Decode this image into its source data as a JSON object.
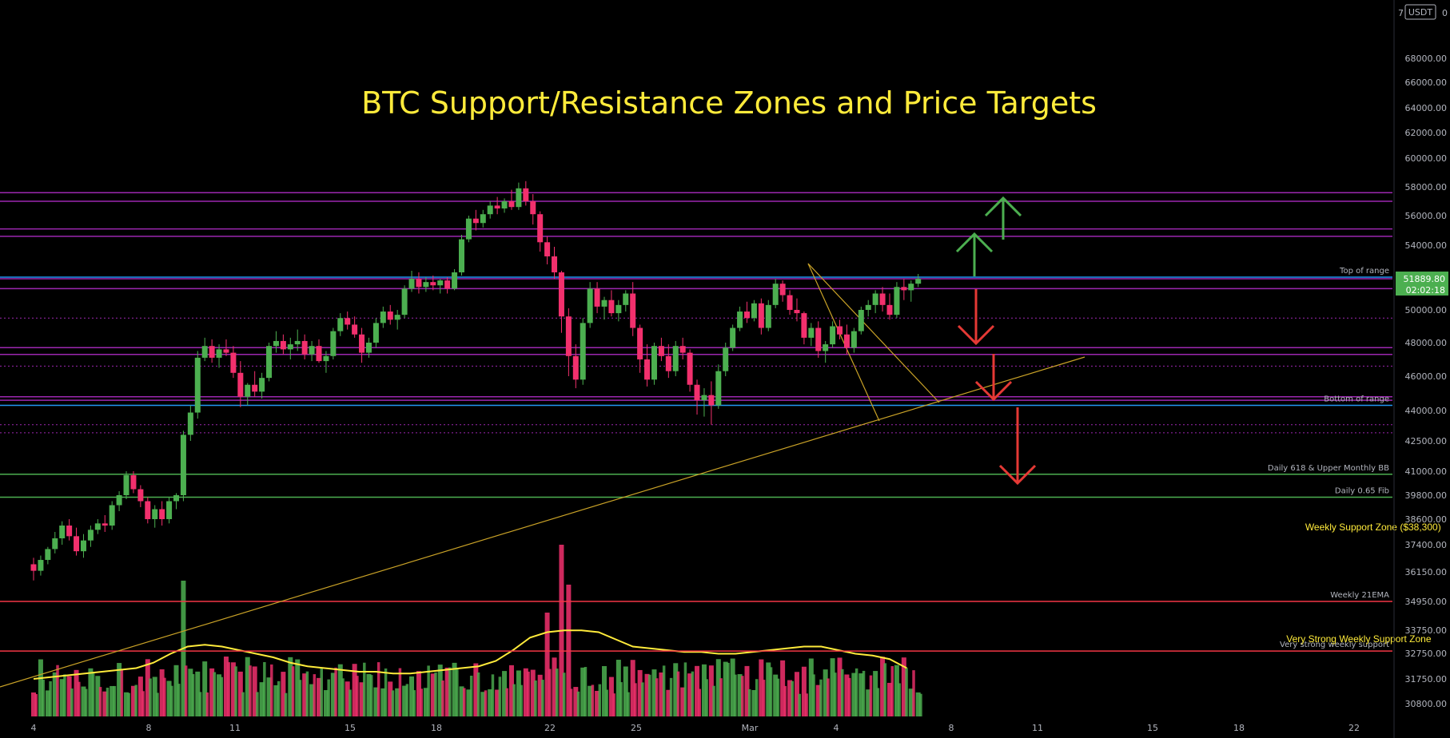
{
  "chart_data": {
    "type": "candlestick",
    "title": "BTC Support/Resistance Zones and Price Targets",
    "currency_badge": "USDT",
    "currency_number": "7",
    "y_axis": {
      "ticks": [
        68000,
        66000,
        64000,
        62000,
        60000,
        58000,
        56000,
        54000,
        52000,
        50000,
        48000,
        46000,
        44000,
        42500,
        41000,
        39800,
        38600,
        37400,
        36150,
        34950,
        33750,
        32750,
        31750,
        30800
      ],
      "tick_labels": [
        "68000.00",
        "66000.00",
        "64000.00",
        "62000.00",
        "60000.00",
        "58000.00",
        "56000.00",
        "54000.00",
        "52000.00",
        "50000.00",
        "48000.00",
        "46000.00",
        "44000.00",
        "42500.00",
        "41000.00",
        "39800.00",
        "38600.00",
        "37400.00",
        "36150.00",
        "34950.00",
        "33750.00",
        "32750.00",
        "31750.00",
        "30800.00"
      ]
    },
    "x_axis": {
      "tick_labels": [
        "4",
        "8",
        "11",
        "15",
        "18",
        "22",
        "25",
        "Mar",
        "4",
        "8",
        "11",
        "15",
        "18",
        "22"
      ]
    },
    "current_price": {
      "price": "51889.80",
      "countdown": "02:02:18"
    },
    "levels": [
      {
        "price": 57600,
        "color": "#9c27b0",
        "style": "solid"
      },
      {
        "price": 57000,
        "color": "#9c27b0",
        "style": "solid"
      },
      {
        "price": 55100,
        "color": "#9c27b0",
        "style": "solid"
      },
      {
        "price": 54600,
        "color": "#9c27b0",
        "style": "solid"
      },
      {
        "price": 52000,
        "color": "#2196f3",
        "style": "solid",
        "label": "Top of range"
      },
      {
        "price": 51900,
        "color": "#9c27b0",
        "style": "solid"
      },
      {
        "price": 51300,
        "color": "#9c27b0",
        "style": "solid"
      },
      {
        "price": 49500,
        "color": "#9c27b0",
        "style": "dotted"
      },
      {
        "price": 47700,
        "color": "#9c27b0",
        "style": "solid"
      },
      {
        "price": 47300,
        "color": "#9c27b0",
        "style": "solid"
      },
      {
        "price": 46600,
        "color": "#9c27b0",
        "style": "dotted"
      },
      {
        "price": 44800,
        "color": "#9c27b0",
        "style": "solid"
      },
      {
        "price": 44600,
        "color": "#9c27b0",
        "style": "solid"
      },
      {
        "price": 44300,
        "color": "#2196f3",
        "style": "solid",
        "label": "Bottom of range"
      },
      {
        "price": 43300,
        "color": "#9c27b0",
        "style": "dotted"
      },
      {
        "price": 42900,
        "color": "#9c27b0",
        "style": "dotted"
      },
      {
        "price": 40850,
        "color": "#4caf50",
        "style": "solid",
        "label": "Daily 618 & Upper Monthly BB"
      },
      {
        "price": 39700,
        "color": "#4caf50",
        "style": "solid",
        "label": "Daily 0.65 Fib"
      },
      {
        "price": 34950,
        "color": "#f23645",
        "style": "solid",
        "label": "Weekly 21EMA"
      },
      {
        "price": 32850,
        "color": "#f23645",
        "style": "solid",
        "label": "Very strong weekly support"
      }
    ],
    "annotations": [
      {
        "text": "Weekly Support Zone ($38,300)",
        "price": 38400,
        "day": 47.5
      },
      {
        "text": "Very Strong Weekly Support Zone",
        "price": 33500,
        "day": 47.0
      }
    ],
    "candles": [
      [
        0,
        36500,
        36800,
        35800,
        36200
      ],
      [
        0.25,
        36200,
        36900,
        36000,
        36700
      ],
      [
        0.5,
        36700,
        37300,
        36500,
        37200
      ],
      [
        0.75,
        37200,
        38000,
        37000,
        37700
      ],
      [
        1,
        37700,
        38500,
        37400,
        38300
      ],
      [
        1.25,
        38300,
        38600,
        37600,
        37800
      ],
      [
        1.5,
        37800,
        38200,
        36900,
        37100
      ],
      [
        1.75,
        37100,
        37900,
        36800,
        37600
      ],
      [
        2,
        37600,
        38300,
        37300,
        38100
      ],
      [
        2.25,
        38100,
        38600,
        37900,
        38400
      ],
      [
        2.5,
        38400,
        38800,
        38000,
        38300
      ],
      [
        2.75,
        38300,
        39500,
        38100,
        39300
      ],
      [
        3,
        39300,
        40000,
        39000,
        39800
      ],
      [
        3.25,
        39800,
        41000,
        39600,
        40800
      ],
      [
        3.5,
        40800,
        41000,
        39900,
        40100
      ],
      [
        3.75,
        40100,
        40300,
        39200,
        39500
      ],
      [
        4,
        39500,
        39700,
        38400,
        38600
      ],
      [
        4.25,
        38600,
        39300,
        38200,
        39100
      ],
      [
        4.5,
        39100,
        39500,
        38300,
        38600
      ],
      [
        4.75,
        38600,
        39700,
        38400,
        39500
      ],
      [
        5,
        39500,
        39900,
        39100,
        39800
      ],
      [
        5.25,
        39800,
        43000,
        39500,
        42800
      ],
      [
        5.5,
        42800,
        44300,
        42500,
        43900
      ],
      [
        5.75,
        43900,
        47500,
        43600,
        47100
      ],
      [
        6,
        47100,
        48300,
        46900,
        47800
      ],
      [
        6.25,
        47800,
        48200,
        46800,
        47100
      ],
      [
        6.5,
        47100,
        47900,
        46500,
        47600
      ],
      [
        6.75,
        47600,
        48200,
        47200,
        47400
      ],
      [
        7,
        47400,
        47800,
        45900,
        46200
      ],
      [
        7.25,
        46200,
        46900,
        44200,
        44800
      ],
      [
        7.5,
        44800,
        45600,
        44300,
        45500
      ],
      [
        7.75,
        45500,
        46300,
        44800,
        45100
      ],
      [
        8,
        45100,
        46200,
        44700,
        45900
      ],
      [
        8.25,
        45900,
        48000,
        45700,
        47800
      ],
      [
        8.5,
        47800,
        48700,
        47400,
        48100
      ],
      [
        8.75,
        48100,
        48500,
        47300,
        47600
      ],
      [
        9,
        47600,
        48300,
        47000,
        47900
      ],
      [
        9.25,
        47900,
        48800,
        47500,
        48100
      ],
      [
        9.5,
        48100,
        48500,
        47000,
        47300
      ],
      [
        9.75,
        47300,
        48100,
        46900,
        47800
      ],
      [
        10,
        47800,
        48200,
        46800,
        46900
      ],
      [
        10.25,
        46900,
        47500,
        46200,
        47200
      ],
      [
        10.5,
        47200,
        48900,
        47000,
        48700
      ],
      [
        10.75,
        48700,
        49800,
        48400,
        49500
      ],
      [
        11,
        49500,
        49900,
        48800,
        49100
      ],
      [
        11.25,
        49100,
        49600,
        48300,
        48500
      ],
      [
        11.5,
        48500,
        48900,
        46800,
        47400
      ],
      [
        11.75,
        47400,
        48300,
        47100,
        48000
      ],
      [
        12,
        48000,
        49500,
        47700,
        49200
      ],
      [
        12.25,
        49200,
        50200,
        48900,
        49900
      ],
      [
        12.5,
        49900,
        50300,
        49100,
        49400
      ],
      [
        12.75,
        49400,
        50000,
        48800,
        49700
      ],
      [
        13,
        49700,
        51500,
        49500,
        51300
      ],
      [
        13.25,
        51300,
        52400,
        51100,
        51900
      ],
      [
        13.5,
        51900,
        52300,
        51000,
        51400
      ],
      [
        13.75,
        51400,
        52000,
        51100,
        51700
      ],
      [
        14,
        51700,
        52100,
        51200,
        51500
      ],
      [
        14.25,
        51500,
        51900,
        51000,
        51800
      ],
      [
        14.5,
        51800,
        52000,
        51000,
        51300
      ],
      [
        14.75,
        51300,
        52500,
        51200,
        52300
      ],
      [
        15,
        52300,
        54700,
        52100,
        54400
      ],
      [
        15.25,
        54400,
        56000,
        54200,
        55800
      ],
      [
        15.5,
        55800,
        56400,
        55000,
        55500
      ],
      [
        15.75,
        55500,
        56400,
        55200,
        56100
      ],
      [
        16,
        56100,
        57000,
        55800,
        56700
      ],
      [
        16.25,
        56700,
        57300,
        56100,
        56500
      ],
      [
        16.5,
        56500,
        57200,
        56200,
        57000
      ],
      [
        16.75,
        57000,
        57800,
        56400,
        56600
      ],
      [
        17,
        56600,
        58300,
        56400,
        57900
      ],
      [
        17.25,
        57900,
        58400,
        56700,
        57000
      ],
      [
        17.5,
        57000,
        57500,
        55400,
        56100
      ],
      [
        17.75,
        56100,
        56300,
        53600,
        54200
      ],
      [
        18,
        54200,
        54600,
        52800,
        53300
      ],
      [
        18.25,
        53300,
        53900,
        51900,
        52300
      ],
      [
        18.5,
        52300,
        52400,
        48600,
        49600
      ],
      [
        18.75,
        49600,
        50100,
        46000,
        47200
      ],
      [
        19,
        47200,
        47900,
        45300,
        45800
      ],
      [
        19.25,
        45800,
        49500,
        45500,
        49200
      ],
      [
        19.5,
        49200,
        51700,
        48900,
        51300
      ],
      [
        19.75,
        51300,
        51700,
        49800,
        50200
      ],
      [
        20,
        50200,
        50800,
        49400,
        50600
      ],
      [
        20.25,
        50600,
        51200,
        49600,
        49800
      ],
      [
        20.5,
        49800,
        50600,
        49300,
        50300
      ],
      [
        20.75,
        50300,
        51200,
        49900,
        51000
      ],
      [
        21,
        51000,
        51700,
        48400,
        48900
      ],
      [
        21.25,
        48900,
        49100,
        46200,
        47000
      ],
      [
        21.5,
        47000,
        47900,
        45400,
        45800
      ],
      [
        21.75,
        45800,
        48000,
        45500,
        47800
      ],
      [
        22,
        47800,
        48300,
        46900,
        47200
      ],
      [
        22.25,
        47200,
        47900,
        45900,
        46300
      ],
      [
        22.5,
        46300,
        48100,
        46000,
        47800
      ],
      [
        22.75,
        47800,
        48300,
        47000,
        47400
      ],
      [
        23,
        47400,
        47600,
        45100,
        45500
      ],
      [
        23.25,
        45500,
        45800,
        43800,
        44600
      ],
      [
        23.5,
        44600,
        45300,
        43700,
        44900
      ],
      [
        23.75,
        44900,
        45700,
        43300,
        44300
      ],
      [
        24,
        44300,
        46700,
        44100,
        46300
      ],
      [
        24.25,
        46300,
        48000,
        46000,
        47700
      ],
      [
        24.5,
        47700,
        49100,
        47500,
        48900
      ],
      [
        24.75,
        48900,
        50200,
        48700,
        49900
      ],
      [
        25,
        49900,
        50500,
        49200,
        49500
      ],
      [
        25.25,
        49500,
        50600,
        49300,
        50400
      ],
      [
        25.5,
        50400,
        50700,
        48500,
        48900
      ],
      [
        25.75,
        48900,
        50600,
        48700,
        50300
      ],
      [
        26,
        50300,
        51900,
        50100,
        51600
      ],
      [
        26.25,
        51600,
        51800,
        50500,
        50900
      ],
      [
        26.5,
        50900,
        51200,
        49700,
        50000
      ],
      [
        26.75,
        50000,
        50700,
        49300,
        49800
      ],
      [
        27,
        49800,
        49900,
        47900,
        48300
      ],
      [
        27.25,
        48300,
        49200,
        47800,
        48900
      ],
      [
        27.5,
        48900,
        49300,
        47100,
        47500
      ],
      [
        27.75,
        47500,
        48100,
        46800,
        47900
      ],
      [
        28,
        47900,
        49300,
        47700,
        49000
      ],
      [
        28.25,
        49000,
        49400,
        48200,
        48500
      ],
      [
        28.5,
        48500,
        49100,
        47300,
        47700
      ],
      [
        28.75,
        47700,
        48900,
        47400,
        48700
      ],
      [
        29,
        48700,
        50200,
        48500,
        50000
      ],
      [
        29.25,
        50000,
        50600,
        49600,
        50300
      ],
      [
        29.5,
        50300,
        51200,
        49800,
        51000
      ],
      [
        29.75,
        51000,
        51400,
        49900,
        50300
      ],
      [
        30,
        50300,
        51000,
        49400,
        49700
      ],
      [
        30.25,
        49700,
        51700,
        49500,
        51400
      ],
      [
        30.5,
        51400,
        51900,
        50600,
        51200
      ],
      [
        30.75,
        51200,
        51800,
        50500,
        51600
      ],
      [
        31,
        51600,
        52200,
        51400,
        51900
      ]
    ],
    "volume_ema": [
      31600,
      31650,
      31700,
      31750,
      31800,
      31850,
      31900,
      32050,
      32300,
      32500,
      32550,
      32500,
      32400,
      32300,
      32200,
      32050,
      31950,
      31900,
      31850,
      31800,
      31800,
      31750,
      31750,
      31800,
      31850,
      31900,
      31950,
      32100,
      32400,
      32750,
      32900,
      32950,
      32950,
      32900,
      32700,
      32500,
      32450,
      32400,
      32350,
      32350,
      32300,
      32300,
      32350,
      32400,
      32450,
      32500,
      32500,
      32400,
      32300,
      32250,
      32150,
      31900
    ]
  }
}
